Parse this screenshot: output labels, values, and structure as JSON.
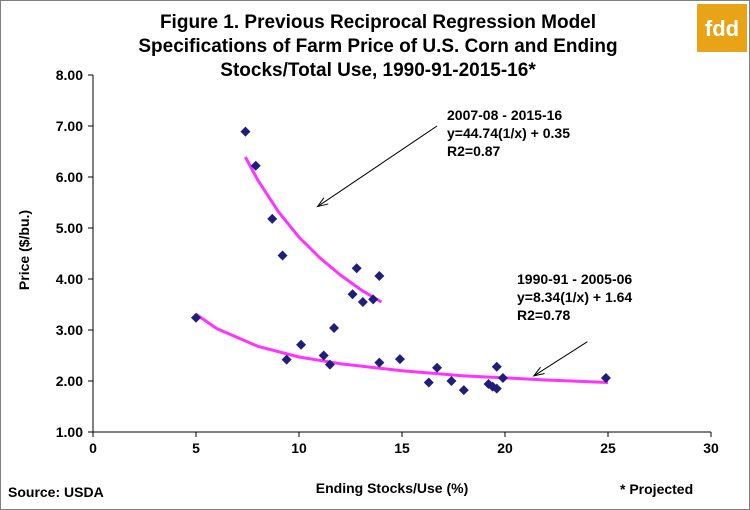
{
  "chart_data": {
    "type": "scatter",
    "title_lines": [
      "Figure 1. Previous Reciprocal Regression Model",
      "Specifications of Farm Price of U.S. Corn and Ending",
      "Stocks/Total Use, 1990-91-2015-16*"
    ],
    "xlabel": "Ending Stocks/Use (%)",
    "ylabel": "Price ($/bu.)",
    "xlim": [
      0,
      30
    ],
    "ylim": [
      1.0,
      8.0
    ],
    "xticks": [
      0,
      5,
      10,
      15,
      20,
      25,
      30
    ],
    "xtick_labels": [
      "0",
      "5",
      "10",
      "15",
      "20",
      "25",
      "30"
    ],
    "yticks": [
      1,
      2,
      3,
      4,
      5,
      6,
      7,
      8
    ],
    "ytick_labels": [
      "1.00",
      "2.00",
      "3.00",
      "4.00",
      "5.00",
      "6.00",
      "7.00",
      "8.00"
    ],
    "grid": false,
    "marker_color": "#1f1f7a",
    "fit_color": "#ff33ff",
    "points": [
      {
        "x": 7.4,
        "y": 6.89
      },
      {
        "x": 7.9,
        "y": 6.22
      },
      {
        "x": 8.7,
        "y": 5.18
      },
      {
        "x": 9.2,
        "y": 4.46
      },
      {
        "x": 12.6,
        "y": 3.7
      },
      {
        "x": 12.8,
        "y": 4.21
      },
      {
        "x": 13.1,
        "y": 3.55
      },
      {
        "x": 13.6,
        "y": 3.6
      },
      {
        "x": 13.9,
        "y": 4.06
      },
      {
        "x": 5.0,
        "y": 3.24
      },
      {
        "x": 9.4,
        "y": 2.42
      },
      {
        "x": 10.1,
        "y": 2.71
      },
      {
        "x": 11.2,
        "y": 2.5
      },
      {
        "x": 11.5,
        "y": 2.32
      },
      {
        "x": 11.7,
        "y": 3.04
      },
      {
        "x": 13.9,
        "y": 2.36
      },
      {
        "x": 14.9,
        "y": 2.43
      },
      {
        "x": 16.3,
        "y": 1.97
      },
      {
        "x": 16.7,
        "y": 2.26
      },
      {
        "x": 17.4,
        "y": 2.0
      },
      {
        "x": 18.0,
        "y": 1.82
      },
      {
        "x": 19.2,
        "y": 1.94
      },
      {
        "x": 19.4,
        "y": 1.89
      },
      {
        "x": 19.6,
        "y": 1.85
      },
      {
        "x": 19.6,
        "y": 2.28
      },
      {
        "x": 19.9,
        "y": 2.06
      },
      {
        "x": 24.9,
        "y": 2.06
      }
    ],
    "fits": [
      {
        "x": [
          7.4,
          8.0,
          9.0,
          10.0,
          11.0,
          12.0,
          13.0,
          14.0
        ],
        "y": [
          6.39,
          5.94,
          5.32,
          4.82,
          4.42,
          4.08,
          3.79,
          3.55
        ]
      },
      {
        "x": [
          5.0,
          6.0,
          8.0,
          10.0,
          12.0,
          15.0,
          18.0,
          20.0,
          22.0,
          25.0
        ],
        "y": [
          3.31,
          3.03,
          2.68,
          2.47,
          2.34,
          2.2,
          2.1,
          2.06,
          2.02,
          1.97
        ]
      }
    ],
    "annotations": [
      {
        "lines": [
          "2007-08 - 2015-16",
          "y=44.74(1/x) + 0.35",
          "R2=0.87"
        ],
        "arrow_from": [
          16.7,
          7.0
        ],
        "arrow_to": [
          10.9,
          5.42
        ]
      },
      {
        "lines": [
          "1990-91 - 2005-06",
          "y=8.34(1/x) + 1.64",
          "R2=0.78"
        ],
        "arrow_from": [
          24.0,
          2.77
        ],
        "arrow_to": [
          21.4,
          2.1
        ]
      }
    ]
  },
  "footer": {
    "source": "Source: USDA",
    "note": "* Projected"
  },
  "logo": {
    "text": "fdd",
    "bg_color": "#e8a317"
  }
}
